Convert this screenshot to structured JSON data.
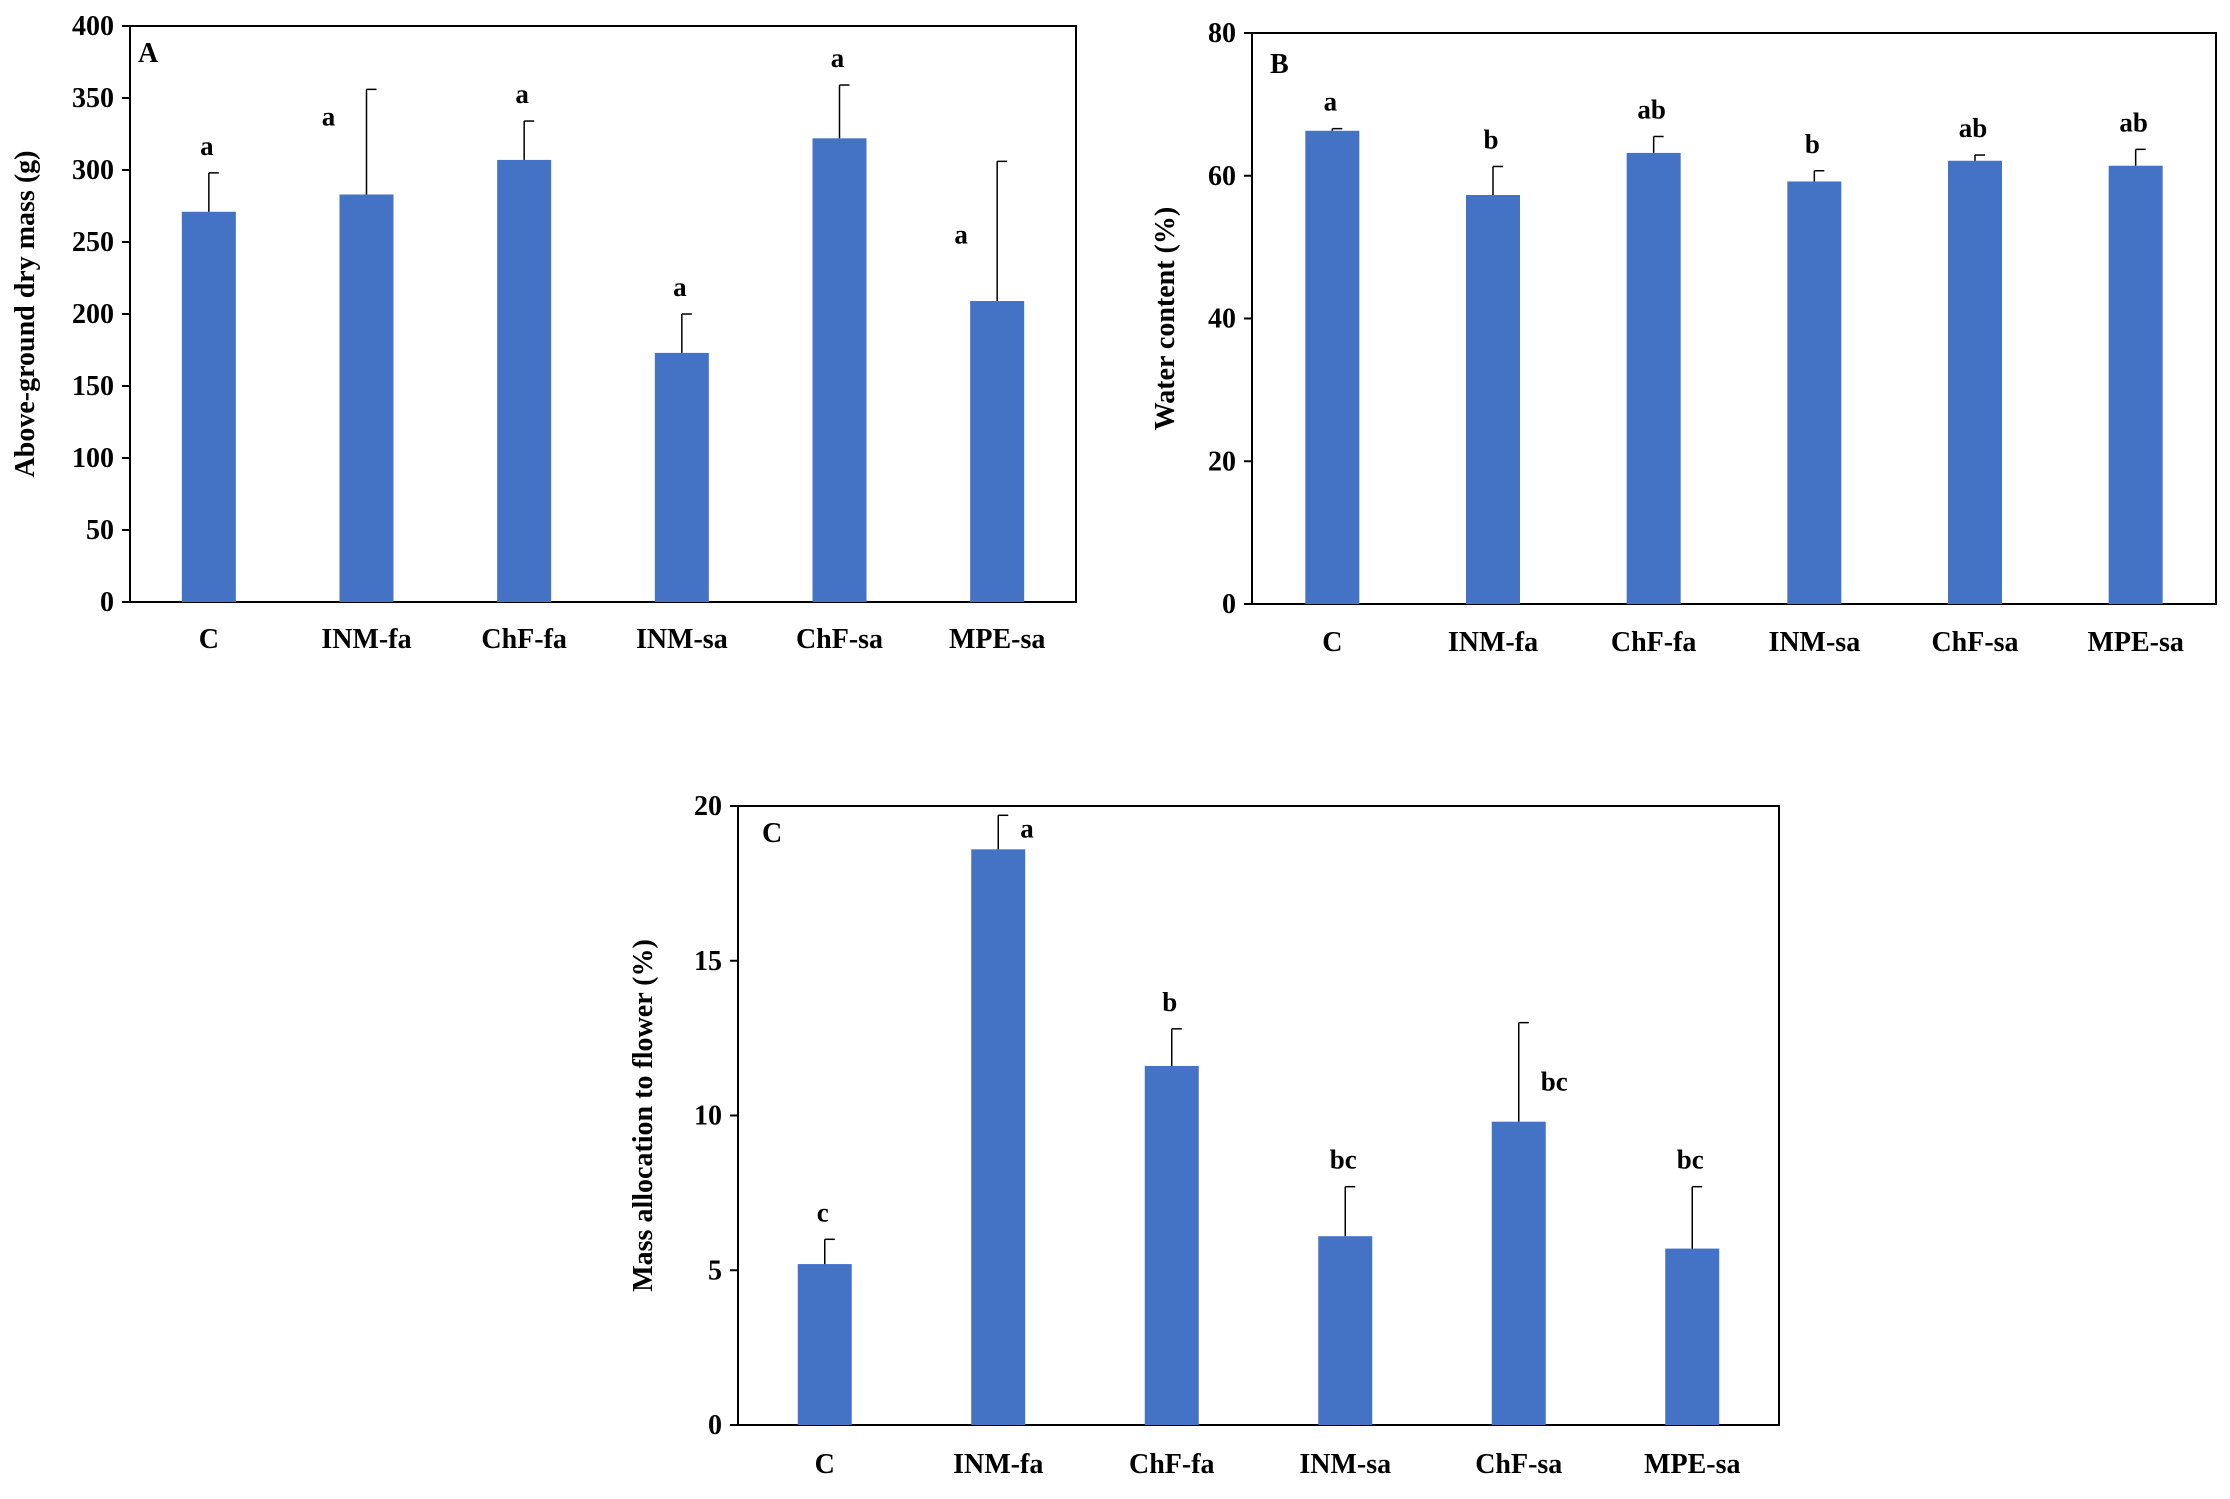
{
  "chart_data": [
    {
      "type": "bar",
      "panel_label": "A",
      "categories": [
        "C",
        "INM-fa",
        "ChF-fa",
        "INM-sa",
        "ChF-sa",
        "MPE-sa"
      ],
      "values": [
        271,
        283,
        307,
        173,
        322,
        209
      ],
      "errors": [
        27,
        73,
        27,
        27,
        37,
        97
      ],
      "significance": [
        "a",
        "a",
        "a",
        "a",
        "a",
        "a"
      ],
      "ylabel": "Above-ground dry mass (g)",
      "xlabel": "",
      "ylim": [
        0,
        400
      ],
      "yticks": [
        0,
        50,
        100,
        150,
        200,
        250,
        300,
        350,
        400
      ],
      "bar_color": "#4472C4"
    },
    {
      "type": "bar",
      "panel_label": "B",
      "categories": [
        "C",
        "INM-fa",
        "ChF-fa",
        "INM-sa",
        "ChF-sa",
        "MPE-sa"
      ],
      "values": [
        66.3,
        57.3,
        63.2,
        59.2,
        62.1,
        61.4
      ],
      "errors": [
        0.3,
        4.0,
        2.3,
        1.5,
        0.8,
        2.3
      ],
      "significance": [
        "a",
        "b",
        "ab",
        "b",
        "ab",
        "ab"
      ],
      "ylabel": "Water content (%)",
      "xlabel": "",
      "ylim": [
        0,
        80
      ],
      "yticks": [
        0,
        20,
        40,
        60,
        80
      ],
      "bar_color": "#4472C4"
    },
    {
      "type": "bar",
      "panel_label": "C",
      "categories": [
        "C",
        "INM-fa",
        "ChF-fa",
        "INM-sa",
        "ChF-sa",
        "MPE-sa"
      ],
      "values": [
        5.2,
        18.6,
        11.6,
        6.1,
        9.8,
        5.7
      ],
      "errors": [
        0.8,
        1.1,
        1.2,
        1.6,
        3.2,
        2.0
      ],
      "significance": [
        "c",
        "a",
        "b",
        "bc",
        "bc",
        "bc"
      ],
      "ylabel": "Mass allocation to flower (%)",
      "xlabel": "",
      "ylim": [
        0,
        20
      ],
      "yticks": [
        0,
        5,
        10,
        15,
        20
      ],
      "bar_color": "#4472C4"
    }
  ]
}
